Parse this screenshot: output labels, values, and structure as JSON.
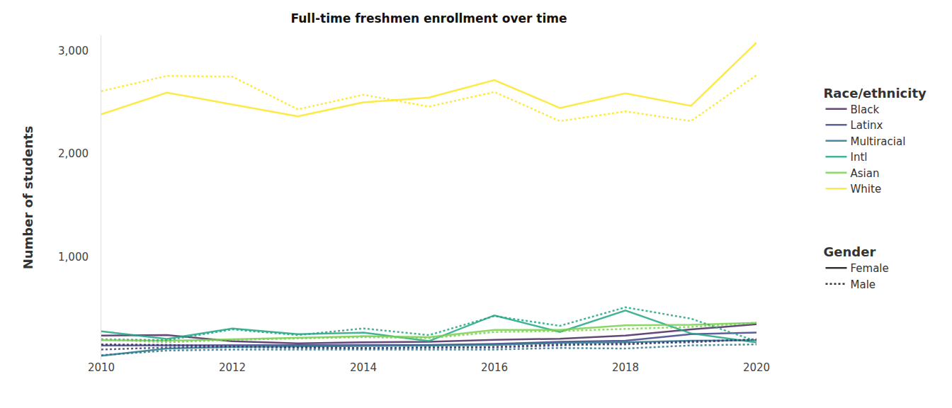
{
  "chart_data": {
    "type": "line",
    "title": "Full-time freshmen enrollment over time",
    "y_label": "Number of students",
    "x": [
      2010,
      2011,
      2012,
      2013,
      2014,
      2015,
      2016,
      2017,
      2018,
      2019,
      2020
    ],
    "xlim": [
      2010,
      2020
    ],
    "xticks": [
      2010,
      2012,
      2014,
      2016,
      2018,
      2020
    ],
    "ylim": [
      0,
      3150
    ],
    "yticks": [
      {
        "value": 1000,
        "label": "1,000"
      },
      {
        "value": 2000,
        "label": "2,000"
      },
      {
        "value": 3000,
        "label": "3,000"
      }
    ],
    "grid": false,
    "legend_groups": [
      {
        "title": "Race/ethnicity"
      },
      {
        "title": "Gender",
        "items": [
          {
            "name": "Female",
            "line_style": "solid"
          },
          {
            "name": "Male",
            "line_style": "dotted"
          }
        ]
      }
    ],
    "series": [
      {
        "name": "Black",
        "color": "#482a5f",
        "line_style": "solid",
        "values": [
          235,
          240,
          180,
          160,
          170,
          175,
          195,
          205,
          235,
          295,
          345
        ]
      },
      {
        "name": "Latinx",
        "color": "#414487",
        "line_style": "solid",
        "values": [
          140,
          140,
          145,
          140,
          145,
          145,
          155,
          175,
          185,
          250,
          265
        ]
      },
      {
        "name": "Multiracial",
        "color": "#2a788e",
        "line_style": "solid",
        "values": [
          40,
          110,
          125,
          130,
          135,
          140,
          145,
          165,
          170,
          185,
          190
        ]
      },
      {
        "name": "Intl",
        "color": "#22a884",
        "line_style": "solid",
        "values": [
          277,
          203,
          304,
          250,
          264,
          182,
          432,
          270,
          480,
          257,
          169
        ]
      },
      {
        "name": "Asian",
        "color": "#7ad151",
        "line_style": "solid",
        "values": [
          190,
          185,
          200,
          215,
          230,
          220,
          290,
          290,
          335,
          340,
          360
        ]
      },
      {
        "name": "White",
        "color": "#fde725",
        "line_style": "solid",
        "values": [
          2385,
          2595,
          2480,
          2365,
          2500,
          2547,
          2716,
          2446,
          2588,
          2466,
          3081
        ]
      },
      {
        "name": "Black",
        "color": "#482a5f",
        "line_style": "dotted",
        "values": [
          150,
          145,
          130,
          120,
          115,
          120,
          125,
          150,
          150,
          180,
          195
        ]
      },
      {
        "name": "Latinx",
        "color": "#414487",
        "line_style": "dotted",
        "values": [
          100,
          120,
          125,
          115,
          110,
          120,
          120,
          140,
          160,
          170,
          200
        ]
      },
      {
        "name": "Multiracial",
        "color": "#2a788e",
        "line_style": "dotted",
        "values": [
          45,
          90,
          100,
          100,
          95,
          100,
          100,
          115,
          110,
          140,
          150
        ]
      },
      {
        "name": "Intl",
        "color": "#22a884",
        "line_style": "dotted",
        "values": [
          200,
          190,
          295,
          240,
          305,
          240,
          425,
          330,
          510,
          400,
          180
        ]
      },
      {
        "name": "Asian",
        "color": "#7ad151",
        "line_style": "dotted",
        "values": [
          200,
          170,
          195,
          205,
          220,
          210,
          270,
          280,
          300,
          320,
          360
        ]
      },
      {
        "name": "White",
        "color": "#fde725",
        "line_style": "dotted",
        "values": [
          2608,
          2757,
          2750,
          2432,
          2574,
          2459,
          2601,
          2318,
          2412,
          2318,
          2764
        ]
      }
    ]
  }
}
